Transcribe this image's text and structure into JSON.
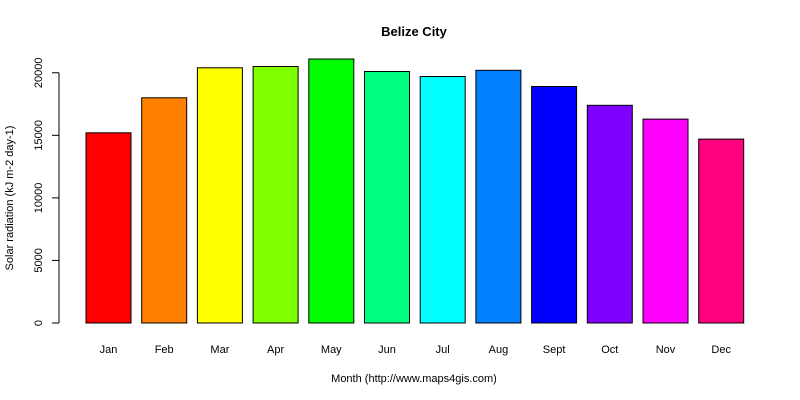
{
  "chart_data": {
    "type": "bar",
    "title": "Belize City",
    "xlabel": "Month (http://www.maps4gis.com)",
    "ylabel": "Solar radiation (kJ m-2 day-1)",
    "categories": [
      "Jan",
      "Feb",
      "Mar",
      "Apr",
      "May",
      "Jun",
      "Jul",
      "Aug",
      "Sept",
      "Oct",
      "Nov",
      "Dec"
    ],
    "values": [
      15200,
      18000,
      20400,
      20500,
      21100,
      20100,
      19700,
      20200,
      18900,
      17400,
      16300,
      14700
    ],
    "colors": [
      "#FF0000",
      "#FF8000",
      "#FFFF00",
      "#80FF00",
      "#00FF00",
      "#00FF80",
      "#00FFFF",
      "#0080FF",
      "#0000FF",
      "#8000FF",
      "#FF00FF",
      "#FF0080"
    ],
    "yticks": [
      0,
      5000,
      10000,
      15000,
      20000
    ],
    "ylim": [
      0,
      21100
    ],
    "grid": false,
    "legend": "none"
  }
}
